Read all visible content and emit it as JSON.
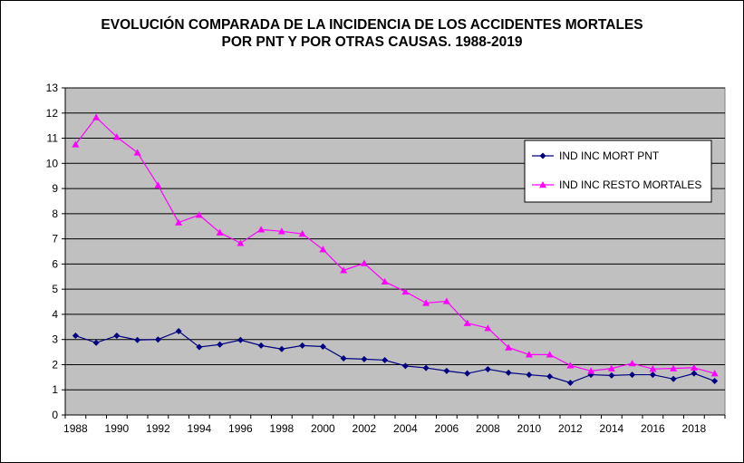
{
  "chart_data": {
    "type": "line",
    "title_lines": [
      "EVOLUCIÓN COMPARADA DE LA INCIDENCIA DE LOS ACCIDENTES MORTALES",
      "POR PNT Y POR OTRAS CAUSAS. 1988-2019"
    ],
    "x": [
      1988,
      1989,
      1990,
      1991,
      1992,
      1993,
      1994,
      1995,
      1996,
      1997,
      1998,
      1999,
      2000,
      2001,
      2002,
      2003,
      2004,
      2005,
      2006,
      2007,
      2008,
      2009,
      2010,
      2011,
      2012,
      2013,
      2014,
      2015,
      2016,
      2017,
      2018,
      2019
    ],
    "x_tick_labels": [
      "1988",
      "1990",
      "1992",
      "1994",
      "1996",
      "1998",
      "2000",
      "2002",
      "2004",
      "2006",
      "2008",
      "2010",
      "2012",
      "2014",
      "2016",
      "2018"
    ],
    "y_tick_labels": [
      "0",
      "1",
      "2",
      "3",
      "4",
      "5",
      "6",
      "7",
      "8",
      "9",
      "10",
      "11",
      "12",
      "13"
    ],
    "ylim": [
      0,
      13
    ],
    "grid": "horizontal",
    "legend_position": "right",
    "plot_background": "#c0c0c0",
    "series": [
      {
        "name": "IND INC MORT PNT",
        "color": "#000080",
        "marker": "diamond",
        "values": [
          3.15,
          2.87,
          3.15,
          2.98,
          3.0,
          3.33,
          2.7,
          2.8,
          2.98,
          2.76,
          2.62,
          2.76,
          2.72,
          2.25,
          2.22,
          2.18,
          1.95,
          1.87,
          1.75,
          1.65,
          1.82,
          1.68,
          1.6,
          1.53,
          1.28,
          1.6,
          1.57,
          1.6,
          1.6,
          1.43,
          1.65,
          1.35
        ]
      },
      {
        "name": "IND INC RESTO MORTALES",
        "color": "#ff00ff",
        "marker": "triangle",
        "values": [
          10.75,
          11.83,
          11.05,
          10.43,
          9.13,
          7.65,
          7.95,
          7.25,
          6.83,
          7.37,
          7.3,
          7.2,
          6.58,
          5.75,
          6.03,
          5.3,
          4.9,
          4.45,
          4.52,
          3.65,
          3.45,
          2.68,
          2.4,
          2.4,
          1.97,
          1.75,
          1.85,
          2.05,
          1.83,
          1.85,
          1.88,
          1.65
        ]
      }
    ]
  }
}
